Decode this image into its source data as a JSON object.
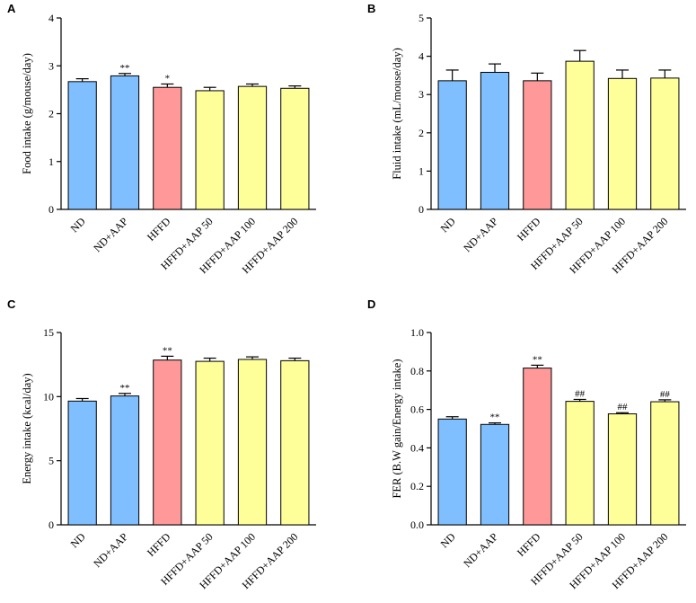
{
  "colors": {
    "blue": "#7fbfff",
    "red": "#ff9999",
    "yellow": "#ffff99",
    "bar_stroke": "#000000"
  },
  "chart_data": [
    {
      "panel": "A",
      "type": "bar",
      "ylabel": "Food intake (g/mouse/day)",
      "categories": [
        "ND",
        "ND+AAP",
        "HFFD",
        "HFFD+AAP 50",
        "HFFD+AAP 100",
        "HFFD+AAP 200"
      ],
      "values": [
        2.67,
        2.79,
        2.55,
        2.48,
        2.57,
        2.53
      ],
      "errors": [
        0.06,
        0.05,
        0.07,
        0.07,
        0.05,
        0.05
      ],
      "significance": [
        "",
        "**",
        "*",
        "",
        "",
        ""
      ],
      "bar_colors": [
        "blue",
        "blue",
        "red",
        "yellow",
        "yellow",
        "yellow"
      ],
      "ylim": [
        0,
        4
      ],
      "yticks": [
        0,
        1,
        2,
        3,
        4
      ],
      "ytick_labels": [
        "0",
        "1",
        "2",
        "3",
        "4"
      ]
    },
    {
      "panel": "B",
      "type": "bar",
      "ylabel": "Fluid intake (mL/mouse/day)",
      "categories": [
        "ND",
        "ND+AAP",
        "HFFD",
        "HFFD+AAP 50",
        "HFFD+AAP 100",
        "HFFD+AAP 200"
      ],
      "values": [
        3.36,
        3.58,
        3.36,
        3.87,
        3.42,
        3.43
      ],
      "errors": [
        0.28,
        0.22,
        0.2,
        0.28,
        0.22,
        0.21
      ],
      "significance": [
        "",
        "",
        "",
        "",
        "",
        ""
      ],
      "bar_colors": [
        "blue",
        "blue",
        "red",
        "yellow",
        "yellow",
        "yellow"
      ],
      "ylim": [
        0,
        5
      ],
      "yticks": [
        0,
        1,
        2,
        3,
        4,
        5
      ],
      "ytick_labels": [
        "0",
        "1",
        "2",
        "3",
        "4",
        "5"
      ]
    },
    {
      "panel": "C",
      "type": "bar",
      "ylabel": "Energy intake (kcal/day)",
      "categories": [
        "ND",
        "ND+AAP",
        "HFFD",
        "HFFD+AAP 50",
        "HFFD+AAP 100",
        "HFFD+AAP 200"
      ],
      "values": [
        9.65,
        10.05,
        12.85,
        12.75,
        12.9,
        12.8
      ],
      "errors": [
        0.2,
        0.2,
        0.3,
        0.25,
        0.2,
        0.2
      ],
      "significance": [
        "",
        "**",
        "**",
        "",
        "",
        ""
      ],
      "bar_colors": [
        "blue",
        "blue",
        "red",
        "yellow",
        "yellow",
        "yellow"
      ],
      "ylim": [
        0,
        15
      ],
      "yticks": [
        0,
        5,
        10,
        15
      ],
      "ytick_labels": [
        "0",
        "5",
        "10",
        "15"
      ]
    },
    {
      "panel": "D",
      "type": "bar",
      "ylabel": "FER (B.W gain/Energy intake)",
      "categories": [
        "ND",
        "ND+AAP",
        "HFFD",
        "HFFD+AAP 50",
        "HFFD+AAP 100",
        "HFFD+AAP 200"
      ],
      "values": [
        0.55,
        0.522,
        0.815,
        0.642,
        0.577,
        0.64
      ],
      "errors": [
        0.012,
        0.008,
        0.015,
        0.01,
        0.006,
        0.01
      ],
      "significance": [
        "",
        "**",
        "**",
        "##",
        "##",
        "##"
      ],
      "bar_colors": [
        "blue",
        "blue",
        "red",
        "yellow",
        "yellow",
        "yellow"
      ],
      "ylim": [
        0,
        1.0
      ],
      "yticks": [
        0,
        0.2,
        0.4,
        0.6,
        0.8,
        1.0
      ],
      "ytick_labels": [
        "0.0",
        "0.2",
        "0.4",
        "0.6",
        "0.8",
        "1.0"
      ]
    }
  ]
}
